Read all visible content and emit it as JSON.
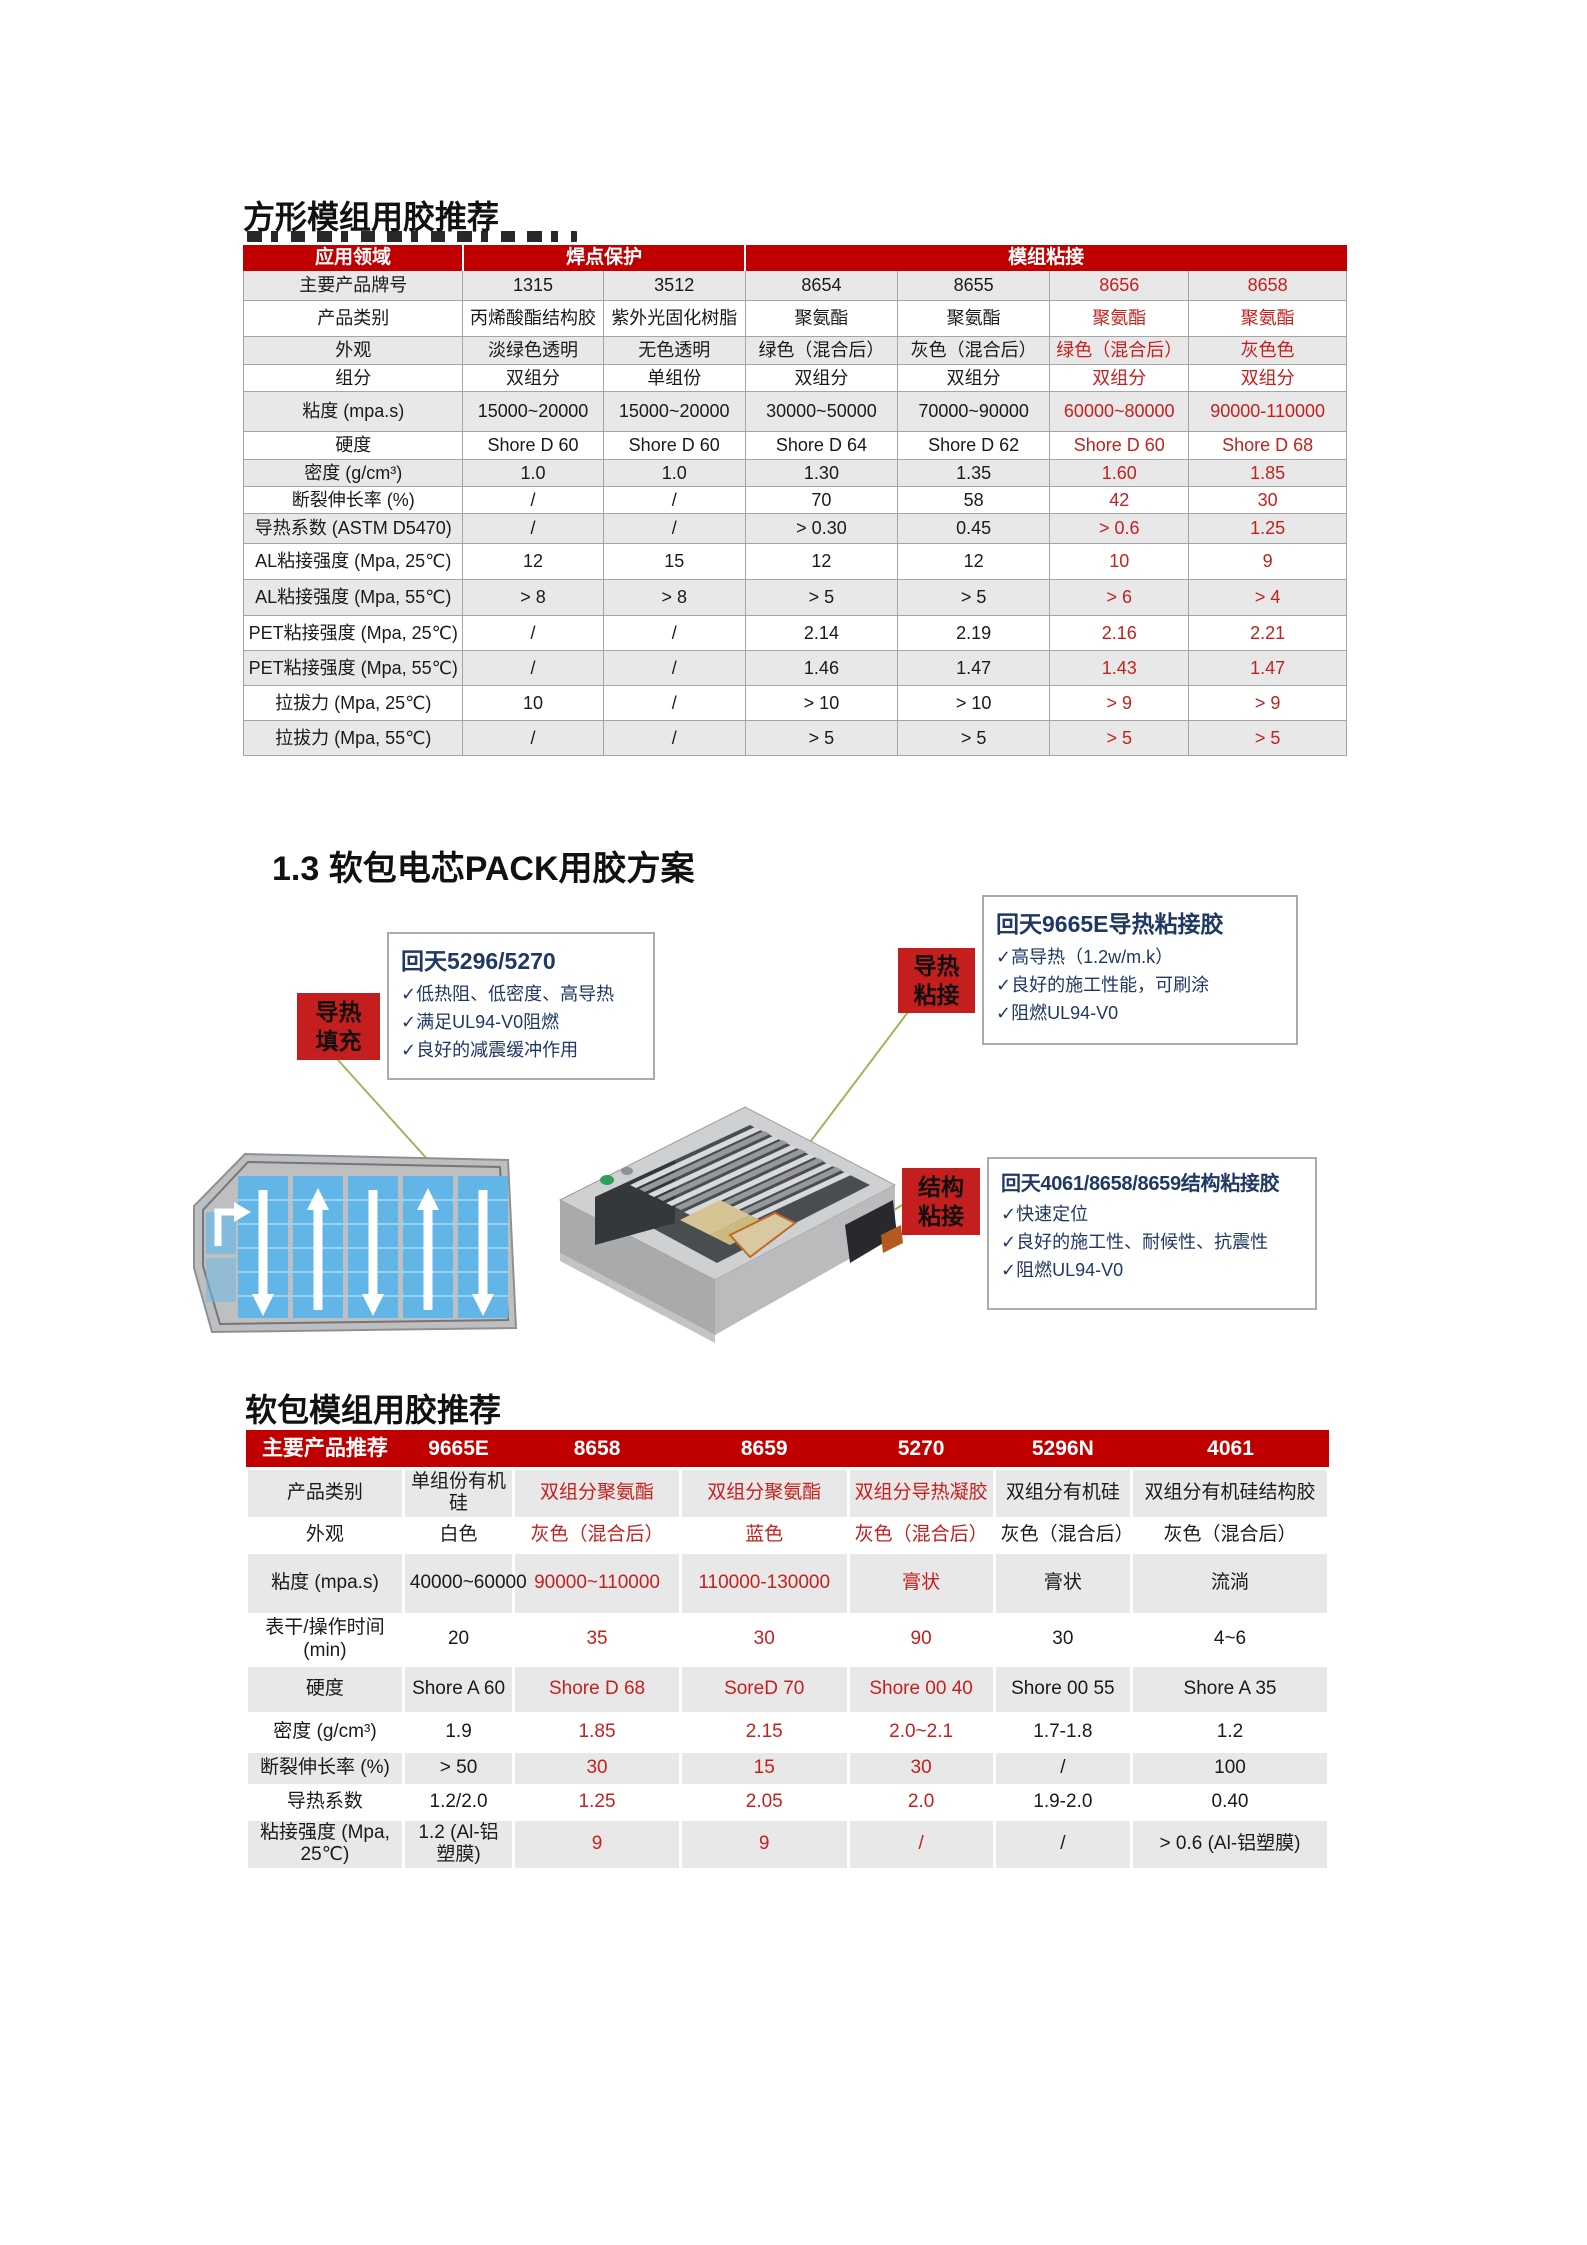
{
  "colors": {
    "accent_red": "#C00000",
    "red_text": "#C5201E",
    "row_gray": "#E9E8E8",
    "navy_text": "#1F3864",
    "green_line": "#9CB85C"
  },
  "section_square": {
    "title": "方形模组用胶推荐"
  },
  "table1": {
    "header_col1": "应用领域",
    "header_group1": "焊点保护",
    "header_group2": "模组粘接",
    "brand_row_label": "主要产品牌号",
    "products": [
      "1315",
      "3512",
      "8654",
      "8655",
      "8656",
      "8658"
    ],
    "red_value_columns": [
      4,
      5
    ],
    "rows": [
      {
        "label": "产品类别",
        "values": [
          "丙烯酸酯结构胶",
          "紫外光固化树脂",
          "聚氨酯",
          "聚氨酯",
          "聚氨酯",
          "聚氨酯"
        ]
      },
      {
        "label": "外观",
        "values": [
          "淡绿色透明",
          "无色透明",
          "绿色（混合后）",
          "灰色（混合后）",
          "绿色（混合后）",
          "灰色色"
        ]
      },
      {
        "label": "组分",
        "values": [
          "双组分",
          "单组份",
          "双组分",
          "双组分",
          "双组分",
          "双组分"
        ]
      },
      {
        "label": "粘度 (mpa.s)",
        "values": [
          "15000~20000",
          "15000~20000",
          "30000~50000",
          "70000~90000",
          "60000~80000",
          "90000-110000"
        ]
      },
      {
        "label": "硬度",
        "values": [
          "Shore D 60",
          "Shore D 60",
          "Shore D 64",
          "Shore D 62",
          "Shore D 60",
          "Shore D 68"
        ]
      },
      {
        "label": "密度 (g/cm³)",
        "values": [
          "1.0",
          "1.0",
          "1.30",
          "1.35",
          "1.60",
          "1.85"
        ]
      },
      {
        "label": "断裂伸长率 (%)",
        "values": [
          "/",
          "/",
          "70",
          "58",
          "42",
          "30"
        ]
      },
      {
        "label": "导热系数 (ASTM D5470)",
        "values": [
          "/",
          "/",
          "> 0.30",
          "0.45",
          "> 0.6",
          "1.25"
        ]
      },
      {
        "label": "AL粘接强度 (Mpa, 25℃)",
        "values": [
          "12",
          "15",
          "12",
          "12",
          "10",
          "9"
        ]
      },
      {
        "label": "AL粘接强度 (Mpa, 55℃)",
        "values": [
          "> 8",
          "> 8",
          "> 5",
          "> 5",
          "> 6",
          "> 4"
        ]
      },
      {
        "label": "PET粘接强度 (Mpa, 25℃)",
        "values": [
          "/",
          "/",
          "2.14",
          "2.19",
          "2.16",
          "2.21"
        ]
      },
      {
        "label": "PET粘接强度 (Mpa, 55℃)",
        "values": [
          "/",
          "/",
          "1.46",
          "1.47",
          "1.43",
          "1.47"
        ]
      },
      {
        "label": "拉拔力 (Mpa, 25℃)",
        "values": [
          "10",
          "/",
          "> 10",
          "> 10",
          "> 9",
          "> 9"
        ]
      },
      {
        "label": "拉拔力 (Mpa, 55℃)",
        "values": [
          "/",
          "/",
          "> 5",
          "> 5",
          "> 5",
          "> 5"
        ]
      }
    ]
  },
  "section_pack": {
    "heading": "1.3 软包电芯PACK用胶方案",
    "tags": [
      {
        "line1": "导热",
        "line2": "填充"
      },
      {
        "line1": "导热",
        "line2": "粘接"
      },
      {
        "line1": "结构",
        "line2": "粘接"
      }
    ],
    "callouts": [
      {
        "title": "回天5296/5270",
        "items": [
          "✓低热阻、低密度、高导热",
          "✓满足UL94-V0阻燃",
          "✓良好的减震缓冲作用"
        ]
      },
      {
        "title": "回天9665E导热粘接胶",
        "items": [
          "✓高导热（1.2w/m.k）",
          "✓良好的施工性能，可刷涂",
          "✓阻燃UL94-V0"
        ]
      },
      {
        "title": "回天4061/8658/8659结构粘接胶",
        "items": [
          "✓快速定位",
          "✓良好的施工性、耐候性、抗震性",
          "✓阻燃UL94-V0"
        ]
      }
    ]
  },
  "section_soft": {
    "title": "软包模组用胶推荐"
  },
  "table2": {
    "header_label": "主要产品推荐",
    "products": [
      "9665E",
      "8658",
      "8659",
      "5270",
      "5296N",
      "4061"
    ],
    "red_value_columns": [
      1,
      2,
      3
    ],
    "rows": [
      {
        "label": "产品类别",
        "values": [
          "单组份有机硅",
          "双组分聚氨酯",
          "双组分聚氨酯",
          "双组分导热凝胶",
          "双组分有机硅",
          "双组分有机硅结构胶"
        ]
      },
      {
        "label": "外观",
        "values": [
          "白色",
          "灰色（混合后）",
          "蓝色",
          "灰色（混合后）",
          "灰色（混合后）",
          "灰色（混合后）"
        ]
      },
      {
        "label": "粘度 (mpa.s)",
        "values": [
          "40000~60000",
          "90000~110000",
          "110000-130000",
          "膏状",
          "膏状",
          "流淌"
        ]
      },
      {
        "label": "表干/操作时间 (min)",
        "values": [
          "20",
          "35",
          "30",
          "90",
          "30",
          "4~6"
        ]
      },
      {
        "label": "硬度",
        "values": [
          "Shore A 60",
          "Shore D 68",
          "SoreD 70",
          "Shore 00 40",
          "Shore 00 55",
          "Shore A 35"
        ]
      },
      {
        "label": "密度 (g/cm³)",
        "values": [
          "1.9",
          "1.85",
          "2.15",
          "2.0~2.1",
          "1.7-1.8",
          "1.2"
        ]
      },
      {
        "label": "断裂伸长率 (%)",
        "values": [
          "> 50",
          "30",
          "15",
          "30",
          "/",
          "100"
        ]
      },
      {
        "label": "导热系数",
        "values": [
          "1.2/2.0",
          "1.25",
          "2.05",
          "2.0",
          "1.9-2.0",
          "0.40"
        ]
      },
      {
        "label": "粘接强度 (Mpa, 25℃)",
        "values": [
          "1.2 (Al-铝塑膜)",
          "9",
          "9",
          "/",
          "/",
          "> 0.6 (Al-铝塑膜)"
        ]
      }
    ]
  }
}
